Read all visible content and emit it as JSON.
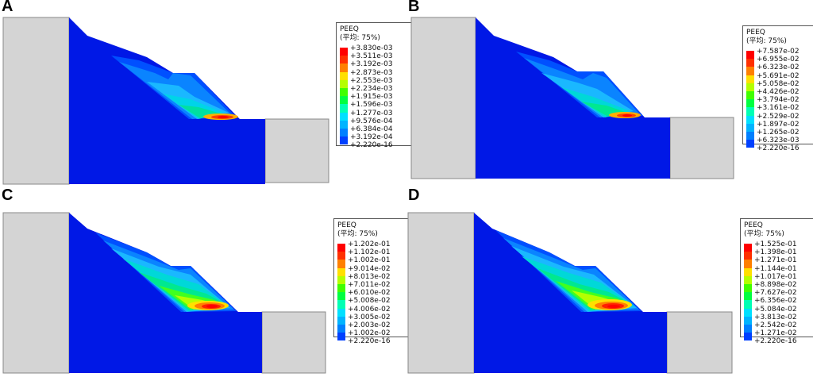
{
  "colors": {
    "background_rock": "#d4d4d4",
    "body_blue": "#0018e6",
    "bands": [
      "#0000ff",
      "#0040ff",
      "#0080ff",
      "#00b4ff",
      "#00e0ff",
      "#00ffb4",
      "#00ff40",
      "#40ff00",
      "#b4ff00",
      "#ffe000",
      "#ff8000",
      "#ff3000",
      "#ff0000"
    ]
  },
  "panels": [
    {
      "letter": "A",
      "legend_title": "PEEQ",
      "legend_subtitle": "(平均: 75%)",
      "values": [
        "+3.830e-03",
        "+3.511e-03",
        "+3.192e-03",
        "+2.873e-03",
        "+2.553e-03",
        "+2.234e-03",
        "+1.915e-03",
        "+1.596e-03",
        "+1.277e-03",
        "+9.576e-04",
        "+6.384e-04",
        "+3.192e-04",
        "+2.220e-16"
      ]
    },
    {
      "letter": "B",
      "legend_title": "PEEQ",
      "legend_subtitle": "(平均: 75%)",
      "values": [
        "+7.587e-02",
        "+6.955e-02",
        "+6.323e-02",
        "+5.691e-02",
        "+5.058e-02",
        "+4.426e-02",
        "+3.794e-02",
        "+3.161e-02",
        "+2.529e-02",
        "+1.897e-02",
        "+1.265e-02",
        "+6.323e-03",
        "+2.220e-16"
      ]
    },
    {
      "letter": "C",
      "legend_title": "PEEQ",
      "legend_subtitle": "(平均: 75%)",
      "values": [
        "+1.202e-01",
        "+1.102e-01",
        "+1.002e-01",
        "+9.014e-02",
        "+8.013e-02",
        "+7.011e-02",
        "+6.010e-02",
        "+5.008e-02",
        "+4.006e-02",
        "+3.005e-02",
        "+2.003e-02",
        "+1.002e-02",
        "+2.220e-16"
      ]
    },
    {
      "letter": "D",
      "legend_title": "PEEQ",
      "legend_subtitle": "(平均: 75%)",
      "values": [
        "+1.525e-01",
        "+1.398e-01",
        "+1.271e-01",
        "+1.144e-01",
        "+1.017e-01",
        "+8.898e-02",
        "+7.627e-02",
        "+6.356e-02",
        "+5.084e-02",
        "+3.813e-02",
        "+2.542e-02",
        "+1.271e-02",
        "+2.220e-16"
      ]
    }
  ]
}
